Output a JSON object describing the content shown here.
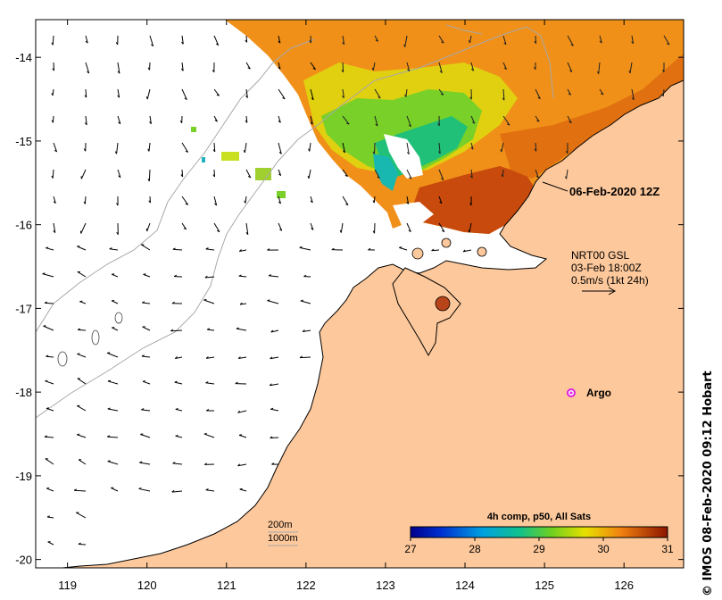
{
  "map": {
    "x_ticks": [
      "119",
      "120",
      "121",
      "122",
      "123",
      "124",
      "125",
      "126"
    ],
    "y_ticks": [
      "-14",
      "-15",
      "-16",
      "-17",
      "-18",
      "-19",
      "-20"
    ],
    "lon_range": [
      118.6,
      126.75
    ],
    "lat_range": [
      -20.1,
      -13.55
    ],
    "land_color": "#fdc89b",
    "colors": {
      "sst_low": "#00008c",
      "sst_high": "#8c1400",
      "isobath": "#a8a8a8",
      "argo": "#e020e0"
    }
  },
  "annotations": {
    "timestamp": "06-Feb-2020 12Z",
    "current_line1": "NRT00 GSL",
    "current_line2": "03-Feb 18:00Z",
    "current_line3": "0.5m/s (1kt 24h)",
    "argo_label": "Argo",
    "isobath_200": "200m",
    "isobath_1000": "1000m"
  },
  "colorbar": {
    "title": "4h comp, p50, All Sats",
    "ticks": [
      "27",
      "28",
      "29",
      "30",
      "31"
    ]
  },
  "credit": "IMOS 08-Feb-2020 09:12 Hobart"
}
